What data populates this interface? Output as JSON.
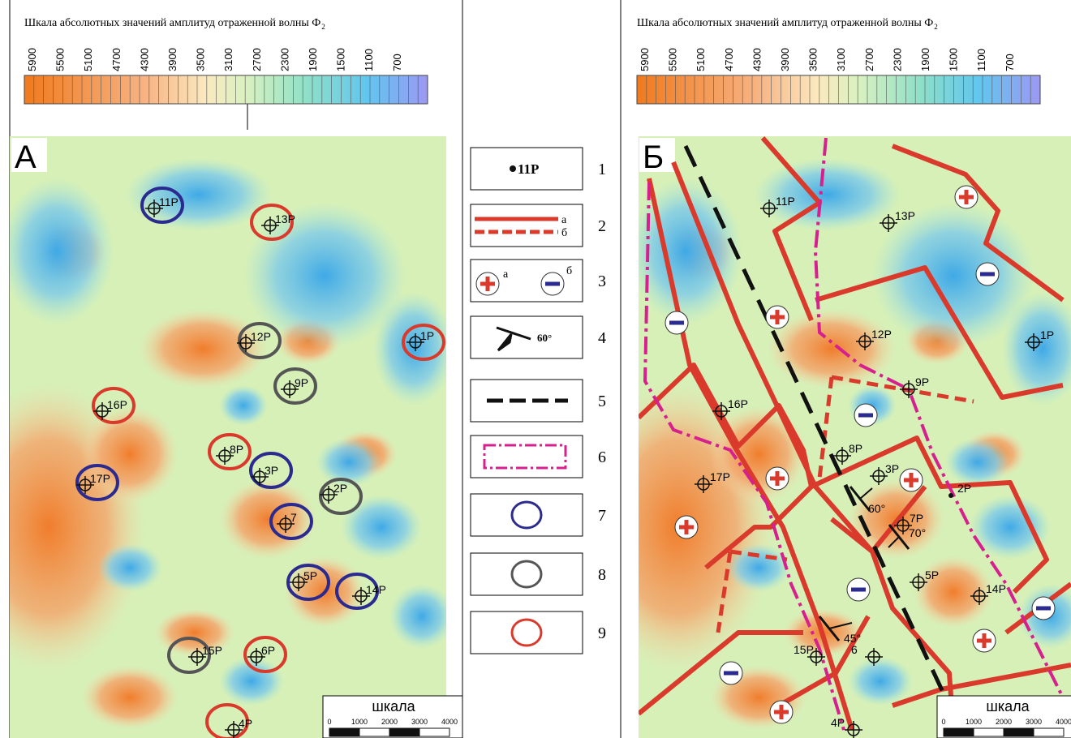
{
  "scale_title": "Шкала абсолютных значений амплитуд отраженной волны Ф",
  "scale_title_sub": "2",
  "scale_labels": [
    5900,
    5500,
    5100,
    4700,
    4300,
    3900,
    3500,
    3100,
    2700,
    2300,
    1900,
    1500,
    1100,
    700
  ],
  "panels": [
    {
      "label": "А",
      "wells": [
        "11P",
        "13P",
        "12P",
        "1P",
        "9P",
        "16P",
        "8P",
        "3P",
        "2P",
        "7",
        "5P",
        "14P",
        "15P",
        "6P",
        "4P",
        "17P"
      ]
    },
    {
      "label": "Б",
      "wells": [
        "11P",
        "13P",
        "12P",
        "1P",
        "9P",
        "16P",
        "8P",
        "3P",
        "2P",
        "7P",
        "5P",
        "14P",
        "15P",
        "6",
        "4P",
        "17P"
      ],
      "dips": [
        "60°",
        "70°",
        "45°"
      ]
    }
  ],
  "legend": [
    {
      "num": 1,
      "text": "11P"
    },
    {
      "num": 2,
      "a": "а",
      "b": "б"
    },
    {
      "num": 3,
      "a": "а",
      "b": "б"
    },
    {
      "num": 4,
      "text": "60°"
    },
    {
      "num": 5
    },
    {
      "num": 6
    },
    {
      "num": 7
    },
    {
      "num": 8
    },
    {
      "num": 9
    }
  ],
  "scale_bar": {
    "title": "шкала",
    "labels": [
      0,
      1000,
      2000,
      3000,
      4000
    ]
  }
}
